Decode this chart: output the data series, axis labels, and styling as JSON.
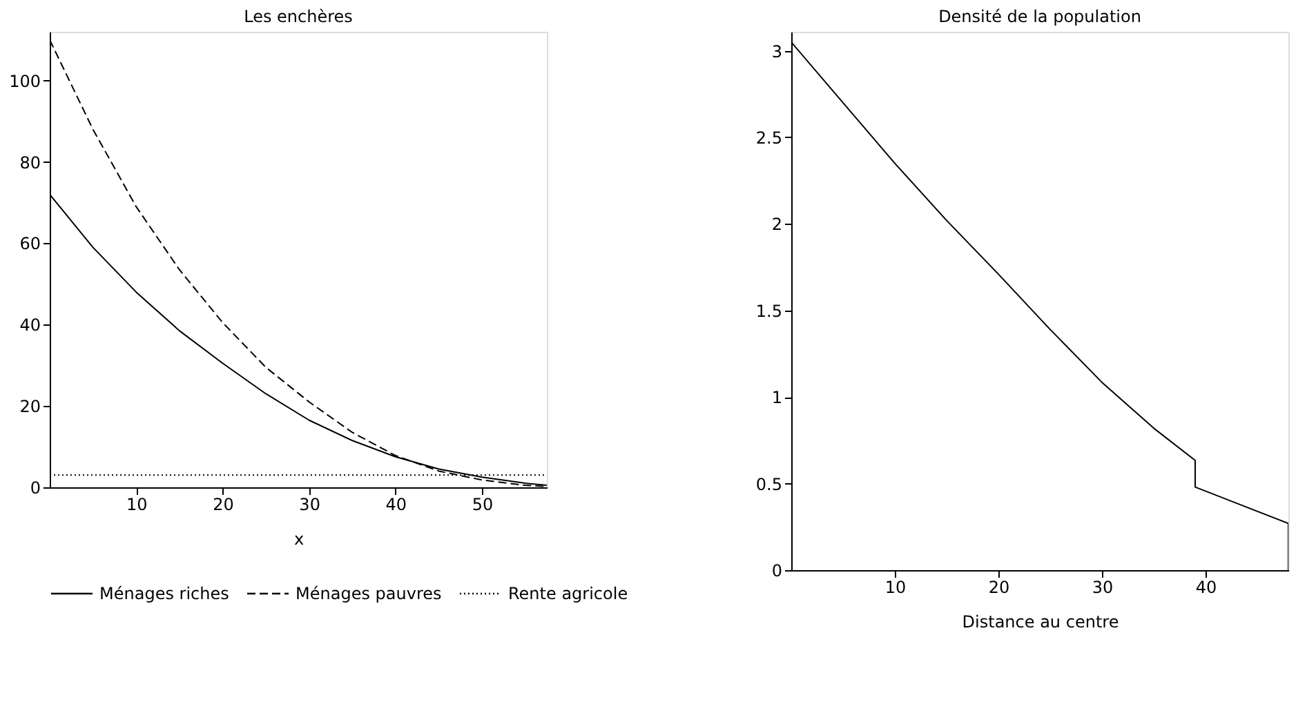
{
  "chart_data": [
    {
      "type": "line",
      "title": "Les enchères",
      "xlabel": "x",
      "xlim": [
        0,
        57.5
      ],
      "ylim": [
        0,
        112
      ],
      "xticks": [
        10,
        20,
        30,
        40,
        50
      ],
      "yticks": [
        0,
        20,
        40,
        60,
        80,
        100
      ],
      "grid": false,
      "legend": "bottom",
      "series": [
        {
          "name": "Ménages riches",
          "color": "#000000",
          "line_style": "solid",
          "x": [
            0,
            5,
            10,
            15,
            20,
            25,
            30,
            35,
            40,
            45,
            50,
            55,
            57.5
          ],
          "values": [
            72,
            59,
            48,
            38.5,
            30.5,
            23,
            16.5,
            11.5,
            7.5,
            4.5,
            2.5,
            1,
            0.5
          ]
        },
        {
          "name": "Ménages pauvres",
          "color": "#000000",
          "line_style": "dashed",
          "x": [
            0,
            5,
            10,
            15,
            20,
            25,
            30,
            35,
            40,
            45,
            50,
            55,
            57.5
          ],
          "values": [
            110,
            88,
            69,
            53.5,
            40.5,
            29.5,
            21,
            13.5,
            7.8,
            4,
            1.8,
            0.5,
            0.2
          ]
        },
        {
          "name": "Rente agricole",
          "color": "#000000",
          "line_style": "dotted",
          "x": [
            0,
            57.5
          ],
          "values": [
            3,
            3
          ]
        }
      ]
    },
    {
      "type": "line",
      "title": "Densité de la population",
      "xlabel": "Distance au centre",
      "xlim": [
        0,
        48
      ],
      "ylim": [
        0,
        3.11
      ],
      "xticks": [
        10,
        20,
        30,
        40
      ],
      "yticks": [
        0,
        0.5,
        1,
        1.5,
        2,
        2.5,
        3
      ],
      "grid": false,
      "legend": false,
      "series": [
        {
          "color": "#000000",
          "line_style": "solid",
          "x": [
            0,
            5,
            10,
            15,
            20,
            25,
            30,
            35,
            39,
            39,
            48,
            48
          ],
          "values": [
            3.05,
            2.7,
            2.35,
            2.02,
            1.71,
            1.39,
            1.085,
            0.82,
            0.634,
            0.48,
            0.27,
            0
          ]
        }
      ]
    }
  ]
}
